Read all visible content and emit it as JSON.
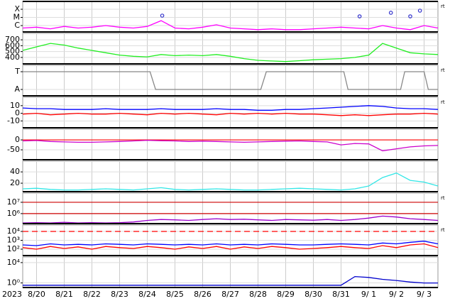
{
  "chart_data": [
    {
      "type": "line",
      "ylim": [
        -6.78,
        -3.04
      ],
      "yticks": [
        {
          "value": -4,
          "label": "X"
        },
        {
          "value": -5,
          "label": "M"
        },
        {
          "value": -6,
          "label": "C"
        }
      ],
      "rt_label": "rt",
      "x": [
        -0.5,
        0,
        0.5,
        1,
        1.5,
        2,
        2.5,
        3,
        3.5,
        4,
        4.5,
        5,
        5.5,
        6,
        6.5,
        7,
        7.5,
        8,
        8.5,
        9,
        9.5,
        10,
        10.5,
        11,
        11.5,
        12,
        12.5,
        13,
        13.5,
        14,
        14.5
      ],
      "series": [
        {
          "color": "#ff00ff",
          "values": [
            -6.3,
            -6.2,
            -6.4,
            -6.1,
            -6.3,
            -6.2,
            -6.0,
            -6.2,
            -6.3,
            -6.1,
            -5.4,
            -6.3,
            -6.4,
            -6.2,
            -5.9,
            -6.3,
            -6.4,
            -6.5,
            -6.4,
            -6.5,
            -6.5,
            -6.4,
            -6.3,
            -6.2,
            -6.3,
            -6.4,
            -6.0,
            -6.3,
            -6.5,
            -6.0,
            -6.3
          ]
        }
      ],
      "markers": {
        "color": "#3333cc",
        "x": [
          4.54,
          11.67,
          12.8,
          13.5,
          13.85
        ],
        "values": [
          -4.78,
          -4.87,
          -4.43,
          -4.87,
          -4.17
        ]
      }
    },
    {
      "type": "line",
      "ylim": [
        290,
        810
      ],
      "yticks": [
        700,
        600,
        500,
        400
      ],
      "x": [
        -0.5,
        0,
        0.5,
        1,
        1.5,
        2,
        2.5,
        3,
        3.5,
        4,
        4.5,
        5,
        5.5,
        6,
        6.5,
        7,
        7.5,
        8,
        8.5,
        9,
        9.5,
        10,
        10.5,
        11,
        11.5,
        12,
        12.5,
        13,
        13.5,
        14,
        14.5
      ],
      "series": [
        {
          "color": "#22ee22",
          "values": [
            520,
            580,
            640,
            610,
            560,
            520,
            480,
            440,
            420,
            410,
            450,
            430,
            440,
            430,
            450,
            420,
            380,
            350,
            340,
            330,
            345,
            360,
            370,
            380,
            400,
            440,
            640,
            560,
            480,
            460,
            450
          ]
        }
      ]
    },
    {
      "type": "line",
      "ylim": [
        -1.72,
        1.72
      ],
      "yticks": [
        {
          "value": 1,
          "label": "T"
        },
        {
          "value": -1,
          "label": "A"
        }
      ],
      "rt_label": "rt",
      "series": [
        {
          "color": "#888888",
          "x": [
            -0.5,
            4.1,
            4.3,
            8.1,
            8.3,
            11.1,
            11.25,
            13.15,
            13.3,
            14.0,
            14.15,
            14.5
          ],
          "values": [
            1,
            1,
            -1,
            -1,
            1,
            1,
            -1,
            -1,
            1,
            1,
            -1,
            -1
          ]
        }
      ]
    },
    {
      "type": "line",
      "ylim": [
        -19,
        21
      ],
      "yticks": [
        10,
        0,
        -10
      ],
      "rt_label": "rt",
      "x": [
        -0.5,
        0,
        0.5,
        1,
        1.5,
        2,
        2.5,
        3,
        3.5,
        4,
        4.5,
        5,
        5.5,
        6,
        6.5,
        7,
        7.5,
        8,
        8.5,
        9,
        9.5,
        10,
        10.5,
        11,
        11.5,
        12,
        12.5,
        13,
        13.5,
        14,
        14.5
      ],
      "series": [
        {
          "color": "#0000ff",
          "values": [
            7,
            6,
            6,
            5,
            5,
            5,
            6,
            5,
            5,
            5,
            6,
            5,
            5,
            5,
            6,
            5,
            5,
            4,
            4,
            5,
            5,
            6,
            7,
            8,
            9,
            10,
            9,
            7,
            6,
            6,
            5
          ]
        },
        {
          "color": "#ff0000",
          "values": [
            -1,
            0,
            -2,
            -1,
            0,
            -1,
            -1,
            0,
            -1,
            -2,
            0,
            -1,
            0,
            -1,
            -2,
            0,
            -1,
            0,
            -1,
            0,
            -1,
            -1,
            -2,
            -3,
            -2,
            -3,
            -2,
            -1,
            -1,
            0,
            -1
          ]
        }
      ]
    },
    {
      "type": "line",
      "ylim": [
        -100,
        54
      ],
      "yticks": [
        0,
        -50
      ],
      "ref_lines": [
        0
      ],
      "ref_color": "#ff0000",
      "x": [
        -0.5,
        0,
        0.5,
        1,
        1.5,
        2,
        2.5,
        3,
        3.5,
        4,
        4.5,
        5,
        5.5,
        6,
        6.5,
        7,
        7.5,
        8,
        8.5,
        9,
        9.5,
        10,
        10.5,
        11,
        11.5,
        12,
        12.5,
        13,
        13.5,
        14,
        14.5
      ],
      "series": [
        {
          "color": "#cc00cc",
          "values": [
            -5,
            -3,
            -8,
            -10,
            -12,
            -12,
            -10,
            -8,
            -5,
            -2,
            -4,
            -5,
            -8,
            -6,
            -8,
            -10,
            -12,
            -10,
            -8,
            -6,
            -5,
            -8,
            -10,
            -25,
            -18,
            -20,
            -55,
            -45,
            -35,
            -30,
            -28
          ]
        }
      ]
    },
    {
      "type": "line",
      "ylim": [
        5,
        59
      ],
      "yticks": [
        40,
        20
      ],
      "x": [
        -0.5,
        0,
        0.5,
        1,
        1.5,
        2,
        2.5,
        3,
        3.5,
        4,
        4.5,
        5,
        5.5,
        6,
        6.5,
        7,
        7.5,
        8,
        8.5,
        9,
        9.5,
        10,
        10.5,
        11,
        11.5,
        12,
        12.5,
        13,
        13.5,
        14,
        14.5
      ],
      "series": [
        {
          "color": "#33e6e6",
          "values": [
            10,
            11,
            9,
            8,
            8,
            9,
            10,
            9,
            8,
            10,
            12,
            9,
            8,
            9,
            10,
            9,
            8,
            8,
            9,
            10,
            11,
            10,
            9,
            8,
            10,
            15,
            30,
            38,
            25,
            22,
            15
          ]
        }
      ]
    },
    {
      "type": "line",
      "log": true,
      "ylim": [
        130000,
        65000000
      ],
      "yticks": [
        {
          "value": 10000000,
          "label": "10⁷"
        },
        {
          "value": 1000000,
          "label": "10⁶"
        }
      ],
      "ref_lines": [
        10000000,
        1000000
      ],
      "ref_color": "#cc0000",
      "rt_label": "rt",
      "x": [
        -0.5,
        0,
        0.5,
        1,
        1.5,
        2,
        2.5,
        3,
        3.5,
        4,
        4.5,
        5,
        5.5,
        6,
        6.5,
        7,
        7.5,
        8,
        8.5,
        9,
        9.5,
        10,
        10.5,
        11,
        11.5,
        12,
        12.5,
        13,
        13.5,
        14,
        14.5
      ],
      "series": [
        {
          "color": "#9900cc",
          "values": [
            150000,
            160000,
            150000,
            170000,
            150000,
            160000,
            150000,
            160000,
            180000,
            250000,
            300000,
            280000,
            250000,
            300000,
            350000,
            300000,
            320000,
            280000,
            250000,
            300000,
            280000,
            260000,
            300000,
            250000,
            300000,
            400000,
            600000,
            500000,
            350000,
            300000,
            250000
          ]
        }
      ]
    },
    {
      "type": "line",
      "log": true,
      "ylim": [
        19,
        52500
      ],
      "yticks": [
        {
          "value": 10000,
          "label": "10⁴"
        },
        {
          "value": 1000,
          "label": "10³"
        },
        {
          "value": 100,
          "label": "10²"
        }
      ],
      "ref_lines": [
        10000
      ],
      "ref_color": "#ff0000",
      "ref_dash": true,
      "rt_label": "rt",
      "x": [
        -0.5,
        0,
        0.5,
        1,
        1.5,
        2,
        2.5,
        3,
        3.5,
        4,
        4.5,
        5,
        5.5,
        6,
        6.5,
        7,
        7.5,
        8,
        8.5,
        9,
        9.5,
        10,
        10.5,
        11,
        11.5,
        12,
        12.5,
        13,
        13.5,
        14,
        14.5
      ],
      "series": [
        {
          "color": "#0000ff",
          "values": [
            300,
            250,
            400,
            300,
            350,
            300,
            400,
            350,
            300,
            400,
            350,
            300,
            350,
            300,
            400,
            300,
            350,
            300,
            400,
            350,
            300,
            300,
            350,
            400,
            350,
            300,
            500,
            400,
            600,
            800,
            400
          ]
        },
        {
          "color": "#ff0000",
          "values": [
            150,
            100,
            200,
            120,
            180,
            100,
            200,
            150,
            120,
            200,
            150,
            100,
            180,
            120,
            200,
            100,
            180,
            120,
            200,
            150,
            100,
            120,
            150,
            200,
            150,
            120,
            250,
            150,
            300,
            400,
            150
          ]
        }
      ]
    },
    {
      "type": "line",
      "log": true,
      "ylim": [
        0.126,
        125900
      ],
      "yticks": [
        {
          "value": 10000,
          "label": "10⁴"
        },
        {
          "value": 1,
          "label": "10⁰"
        }
      ],
      "x": [
        -0.5,
        0,
        0.5,
        1,
        1.5,
        2,
        2.5,
        3,
        3.5,
        4,
        4.5,
        5,
        5.5,
        6,
        6.5,
        7,
        7.5,
        8,
        8.5,
        9,
        9.5,
        10,
        10.5,
        11,
        11.5,
        12,
        12.5,
        13,
        13.5,
        14,
        14.5
      ],
      "series": [
        {
          "color": "#0000cc",
          "values": [
            0.35,
            0.35,
            0.35,
            0.35,
            0.35,
            0.35,
            0.35,
            0.35,
            0.35,
            0.35,
            0.35,
            0.35,
            0.35,
            0.35,
            0.35,
            0.35,
            0.35,
            0.35,
            0.35,
            0.35,
            0.35,
            0.35,
            0.35,
            0.35,
            18,
            12,
            5,
            3,
            1.5,
            1,
            1
          ]
        }
      ],
      "year_label": "2023",
      "xlim": [
        -0.5,
        14.5
      ],
      "xticks": [
        {
          "value": 0,
          "label": "8/20"
        },
        {
          "value": 1,
          "label": "8/21"
        },
        {
          "value": 2,
          "label": "8/22"
        },
        {
          "value": 3,
          "label": "8/23"
        },
        {
          "value": 4,
          "label": "8/24"
        },
        {
          "value": 5,
          "label": "8/25"
        },
        {
          "value": 6,
          "label": "8/26"
        },
        {
          "value": 7,
          "label": "8/27"
        },
        {
          "value": 8,
          "label": "8/28"
        },
        {
          "value": 9,
          "label": "8/29"
        },
        {
          "value": 10,
          "label": "8/30"
        },
        {
          "value": 11,
          "label": "8/31"
        },
        {
          "value": 12,
          "label": "9/ 1"
        },
        {
          "value": 13,
          "label": "9/ 2"
        },
        {
          "value": 14,
          "label": "9/ 3"
        }
      ]
    }
  ]
}
